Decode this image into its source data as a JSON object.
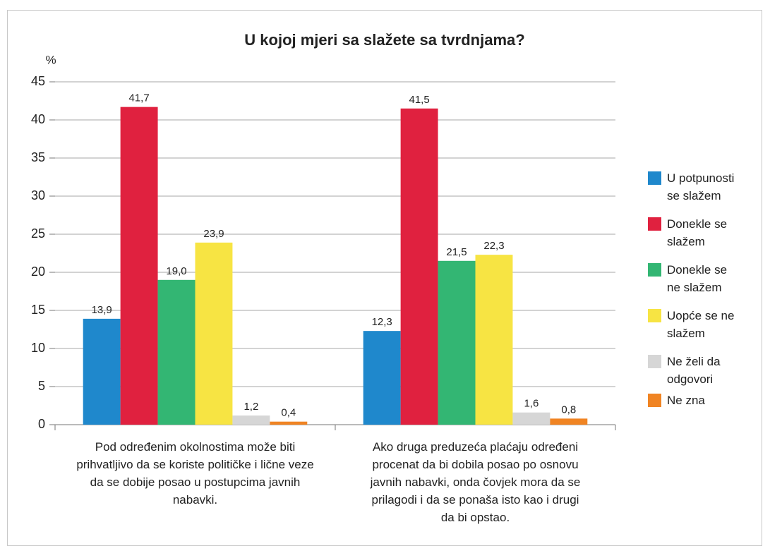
{
  "chart_data": {
    "type": "bar",
    "title": "U kojoj mjeri sa slažete sa tvrdnjama?",
    "ylabel": "%",
    "categories": [
      "Pod određenim okolnostima može biti prihvatljivo da se koriste političke i lične veze da se dobije posao u postupcima javnih nabavki.",
      "Ako druga preduzeća plaćaju određeni procenat da bi dobila posao po osnovu javnih nabavki, onda čovjek mora da se prilagodi i da se ponaša isto kao i drugi da bi opstao."
    ],
    "series": [
      {
        "name": "U potpunosti se slažem",
        "color": "#1f88cc",
        "values": [
          13.9,
          12.3
        ],
        "value_labels": [
          "13,9",
          "12,3"
        ]
      },
      {
        "name": "Donekle se slažem",
        "color": "#e0213f",
        "values": [
          41.7,
          41.5
        ],
        "value_labels": [
          "41,7",
          "41,5"
        ]
      },
      {
        "name": "Donekle se ne slažem",
        "color": "#33b673",
        "values": [
          19.0,
          21.5
        ],
        "value_labels": [
          "19,0",
          "21,5"
        ]
      },
      {
        "name": "Uopće se ne slažem",
        "color": "#f7e443",
        "values": [
          23.9,
          22.3
        ],
        "value_labels": [
          "23,9",
          "22,3"
        ]
      },
      {
        "name": "Ne želi da odgovori",
        "color": "#d6d6d6",
        "values": [
          1.2,
          1.6
        ],
        "value_labels": [
          "1,2",
          "1,6"
        ]
      },
      {
        "name": "Ne zna",
        "color": "#f08423",
        "values": [
          0.4,
          0.8
        ],
        "value_labels": [
          "0,4",
          "0,8"
        ]
      }
    ],
    "ylim": [
      0,
      45
    ],
    "yticks": [
      0,
      5,
      10,
      15,
      20,
      25,
      30,
      35,
      40,
      45
    ],
    "grid": true,
    "legend": "right"
  }
}
